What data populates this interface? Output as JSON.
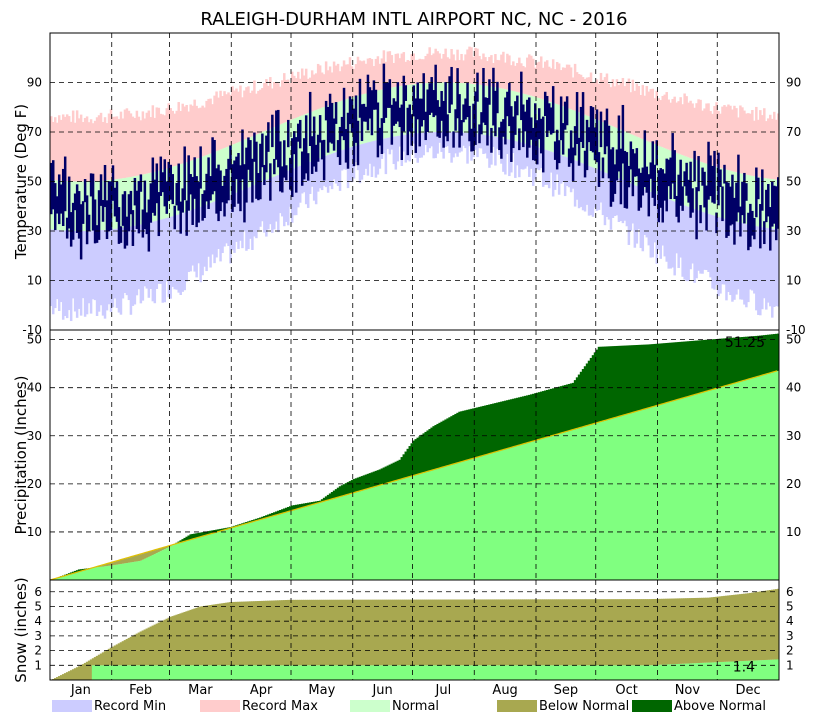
{
  "chart_data": {
    "type": "area",
    "title": "RALEIGH-DURHAM INTL AIRPORT NC, NC - 2016",
    "months": [
      "Jan",
      "Feb",
      "Mar",
      "Apr",
      "May",
      "Jun",
      "Jul",
      "Aug",
      "Sep",
      "Oct",
      "Nov",
      "Dec"
    ],
    "legend": [
      {
        "label": "Record Min",
        "color": "#ccccff"
      },
      {
        "label": "Record Max",
        "color": "#ffcccc"
      },
      {
        "label": "Normal",
        "color": "#ccffcc"
      },
      {
        "label": "Below Normal",
        "color": "#a8a850"
      },
      {
        "label": "Above Normal",
        "color": "#006600"
      }
    ],
    "temperature": {
      "ylabel": "Temperature (Deg F)",
      "ylim": [
        -10,
        110
      ],
      "ticks": [
        -10,
        10,
        30,
        50,
        70,
        90
      ],
      "normal_high_range": [
        50,
        90
      ],
      "normal_low_range": [
        30,
        70
      ],
      "record_max_range": [
        76,
        102
      ],
      "record_min_range": [
        -2,
        62
      ],
      "observed_color": "#000066"
    },
    "precipitation": {
      "ylabel": "Precipitation (Inches)",
      "ylim": [
        0,
        52
      ],
      "ticks": [
        10,
        20,
        30,
        40,
        50
      ],
      "normal_total": 43.5,
      "observed_total": 51.25,
      "annotation": "51.25",
      "observed_checkpoints": [
        {
          "day": 0,
          "value": 0
        },
        {
          "day": 14,
          "value": 2.2
        },
        {
          "day": 30,
          "value": 3.0
        },
        {
          "day": 45,
          "value": 4.0
        },
        {
          "day": 60,
          "value": 7.0
        },
        {
          "day": 70,
          "value": 9.5
        },
        {
          "day": 90,
          "value": 11.0
        },
        {
          "day": 105,
          "value": 13.0
        },
        {
          "day": 121,
          "value": 15.5
        },
        {
          "day": 135,
          "value": 16.5
        },
        {
          "day": 145,
          "value": 19.5
        },
        {
          "day": 152,
          "value": 21.0
        },
        {
          "day": 165,
          "value": 23.0
        },
        {
          "day": 175,
          "value": 25.0
        },
        {
          "day": 182,
          "value": 29.0
        },
        {
          "day": 192,
          "value": 32.0
        },
        {
          "day": 205,
          "value": 35.0
        },
        {
          "day": 220,
          "value": 36.5
        },
        {
          "day": 240,
          "value": 38.5
        },
        {
          "day": 262,
          "value": 41.0
        },
        {
          "day": 275,
          "value": 48.5
        },
        {
          "day": 300,
          "value": 49.0
        },
        {
          "day": 330,
          "value": 50.0
        },
        {
          "day": 355,
          "value": 50.8
        },
        {
          "day": 365,
          "value": 51.25
        }
      ]
    },
    "snow": {
      "ylabel": "Snow (inches)",
      "ylim": [
        0,
        6.8
      ],
      "ticks": [
        1,
        2,
        3,
        4,
        5,
        6
      ],
      "normal_total": 6.2,
      "observed_total": 1.4,
      "annotation": "1.4",
      "observed_checkpoints": [
        {
          "day": 0,
          "value": 0
        },
        {
          "day": 20,
          "value": 0
        },
        {
          "day": 21,
          "value": 1.0
        },
        {
          "day": 40,
          "value": 1.0
        },
        {
          "day": 60,
          "value": 1.0
        },
        {
          "day": 300,
          "value": 1.0
        },
        {
          "day": 365,
          "value": 1.4
        }
      ],
      "normal_checkpoints": [
        {
          "day": 0,
          "value": 0
        },
        {
          "day": 15,
          "value": 1.0
        },
        {
          "day": 30,
          "value": 2.2
        },
        {
          "day": 45,
          "value": 3.3
        },
        {
          "day": 60,
          "value": 4.3
        },
        {
          "day": 75,
          "value": 5.0
        },
        {
          "day": 90,
          "value": 5.3
        },
        {
          "day": 120,
          "value": 5.45
        },
        {
          "day": 300,
          "value": 5.5
        },
        {
          "day": 330,
          "value": 5.6
        },
        {
          "day": 350,
          "value": 5.9
        },
        {
          "day": 365,
          "value": 6.2
        }
      ]
    }
  }
}
